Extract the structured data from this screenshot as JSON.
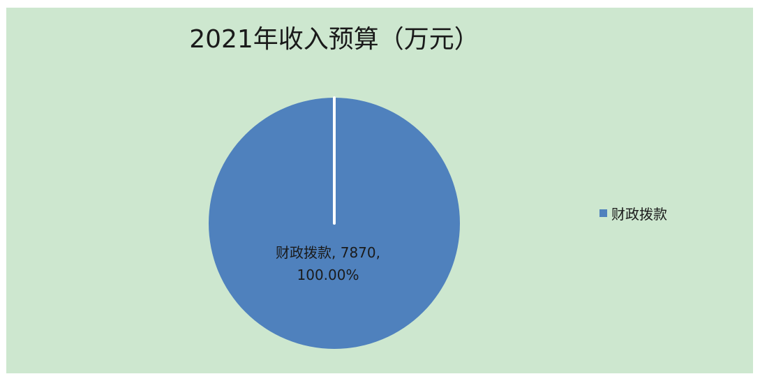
{
  "colors": {
    "plot_background": "#cde7cf",
    "slice": "#4f81bd",
    "slice_border": "#ffffff"
  },
  "chart_data": {
    "type": "pie",
    "title": "2021年收入预算（万元）",
    "slices": [
      {
        "label": "财政拨款",
        "value": 7870,
        "percent_text": "100.00%",
        "color": "#4f81bd"
      }
    ],
    "data_labels": {
      "line1": "财政拨款, 7870,",
      "line2": "100.00%"
    },
    "legend": {
      "position": "right",
      "entries": [
        "财政拨款"
      ]
    }
  }
}
